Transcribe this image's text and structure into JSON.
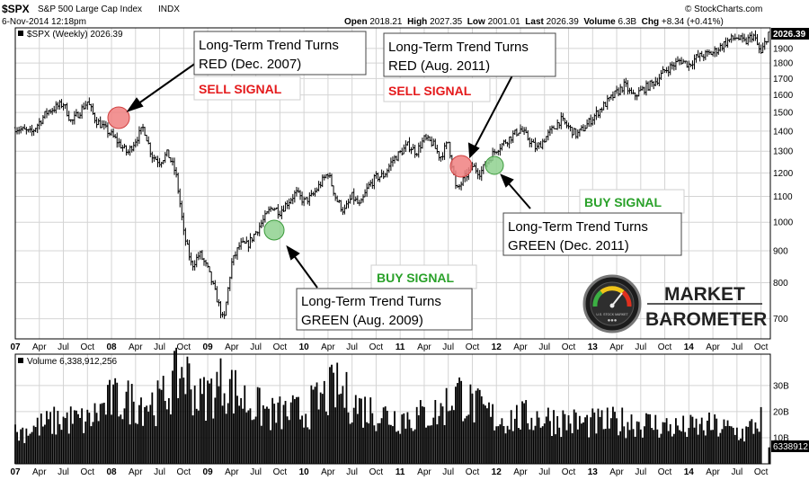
{
  "header": {
    "symbol": "$SPX",
    "name": "S&P 500 Large Cap Index",
    "exchange": "INDX",
    "date": "6-Nov-2014 12:18pm",
    "open_label": "Open",
    "open": "2018.21",
    "high_label": "High",
    "high": "2027.35",
    "low_label": "Low",
    "low": "2001.01",
    "last_label": "Last",
    "last": "2026.39",
    "volume_label": "Volume",
    "volume": "6.3B",
    "chg_label": "Chg",
    "chg": "+8.34 (+0.41%)",
    "credit": "© StockCharts.com"
  },
  "price_panel": {
    "legend": "$SPX (Weekly) 2026.39",
    "last_tag": "2026.39"
  },
  "volume_panel": {
    "legend": "Volume 6,338,912,256",
    "last_tag": "6338912"
  },
  "annotations": {
    "sell_2007": {
      "title": "Long-Term Trend Turns",
      "sub": "RED (Dec. 2007)",
      "signal": "SELL SIGNAL"
    },
    "sell_2011": {
      "title": "Long-Term Trend Turns",
      "sub": "RED (Aug. 2011)",
      "signal": "SELL SIGNAL"
    },
    "buy_2009": {
      "title": "Long-Term Trend Turns",
      "sub": "GREEN (Aug. 2009)",
      "signal": "BUY SIGNAL"
    },
    "buy_2011": {
      "title": "Long-Term Trend Turns",
      "sub": "GREEN (Dec. 2011)",
      "signal": "BUY SIGNAL"
    }
  },
  "logo": {
    "line1": "MARKET",
    "line2": "BAROMETER",
    "gauge_text": "U.S. STOCK MARKET"
  },
  "colors": {
    "price": "#000000",
    "volume": "#000000",
    "grid": "#d4d4d4",
    "sell": "#e41a1c",
    "buy": "#2aa12a",
    "sell_circle": "#f08080",
    "buy_circle": "#8fd18f",
    "box_border": "#444444"
  },
  "chart_data": [
    {
      "type": "line",
      "title": "$SPX (Weekly) 2026.39",
      "y_scale": "log",
      "ylim": [
        650,
        2050
      ],
      "yticks": [
        700,
        800,
        900,
        1000,
        1100,
        1200,
        1300,
        1400,
        1500,
        1600,
        1700,
        1800,
        1900
      ],
      "xlim": [
        "2007-01-01",
        "2014-11-06"
      ],
      "x_tick_labels": [
        "07",
        "Apr",
        "Jul",
        "Oct",
        "08",
        "Apr",
        "Jul",
        "Oct",
        "09",
        "Apr",
        "Jul",
        "Oct",
        "10",
        "Apr",
        "Jul",
        "Oct",
        "11",
        "Apr",
        "Jul",
        "Oct",
        "12",
        "Apr",
        "Jul",
        "Oct",
        "13",
        "Apr",
        "Jul",
        "Oct",
        "14",
        "Apr",
        "Jul",
        "Oct"
      ],
      "series": [
        {
          "x": [
            "2007-01",
            "2007-03",
            "2007-05",
            "2007-07",
            "2007-08",
            "2007-10",
            "2007-11",
            "2008-01",
            "2008-03",
            "2008-05",
            "2008-06",
            "2008-07",
            "2008-08",
            "2008-09",
            "2008-10",
            "2008-11",
            "2008-12",
            "2009-01",
            "2009-03",
            "2009-04",
            "2009-05",
            "2009-06",
            "2009-08",
            "2009-09",
            "2009-10",
            "2009-12",
            "2010-01",
            "2010-02",
            "2010-04",
            "2010-05",
            "2010-06",
            "2010-07",
            "2010-08",
            "2010-09",
            "2010-10",
            "2010-11",
            "2010-12",
            "2011-02",
            "2011-03",
            "2011-04",
            "2011-05",
            "2011-06",
            "2011-07",
            "2011-08",
            "2011-10",
            "2011-11",
            "2011-12",
            "2012-01",
            "2012-04",
            "2012-06",
            "2012-09",
            "2012-11",
            "2012-12",
            "2013-02",
            "2013-05",
            "2013-06",
            "2013-09",
            "2013-10",
            "2013-12",
            "2014-01",
            "2014-02",
            "2014-04",
            "2014-06",
            "2014-07",
            "2014-08",
            "2014-09",
            "2014-10",
            "2014-11"
          ],
          "values": [
            1418,
            1390,
            1505,
            1550,
            1445,
            1560,
            1460,
            1380,
            1290,
            1420,
            1280,
            1250,
            1290,
            1200,
            960,
            850,
            890,
            840,
            690,
            860,
            920,
            920,
            1010,
            1060,
            1040,
            1115,
            1080,
            1100,
            1200,
            1090,
            1040,
            1100,
            1060,
            1140,
            1180,
            1190,
            1255,
            1330,
            1295,
            1360,
            1340,
            1270,
            1345,
            1120,
            1230,
            1200,
            1258,
            1310,
            1410,
            1310,
            1460,
            1380,
            1420,
            1520,
            1660,
            1590,
            1690,
            1750,
            1820,
            1790,
            1840,
            1870,
            1960,
            1980,
            1940,
            2000,
            1860,
            2026
          ]
        }
      ]
    },
    {
      "type": "bar",
      "title": "Volume 6,338,912,256",
      "ylim": [
        0,
        42
      ],
      "ylabel": "",
      "yticks": [
        10,
        20,
        30
      ],
      "ytick_labels": [
        "10B",
        "20B",
        "30B"
      ],
      "series": [
        {
          "x": [
            "2007-01",
            "2007-07",
            "2007-10",
            "2008-01",
            "2008-07",
            "2008-10",
            "2008-12",
            "2009-03",
            "2009-06",
            "2009-09",
            "2010-01",
            "2010-05",
            "2010-08",
            "2010-12",
            "2011-03",
            "2011-06",
            "2011-08",
            "2011-10",
            "2012-01",
            "2012-06",
            "2012-12",
            "2013-06",
            "2013-12",
            "2014-04",
            "2014-08",
            "2014-10",
            "2014-11"
          ],
          "values": [
            13,
            19,
            18,
            27,
            26,
            40,
            27,
            35,
            26,
            21,
            22,
            32,
            24,
            20,
            20,
            22,
            31,
            25,
            19,
            20,
            17,
            18,
            15,
            16,
            13,
            19,
            6.3
          ]
        }
      ]
    }
  ]
}
